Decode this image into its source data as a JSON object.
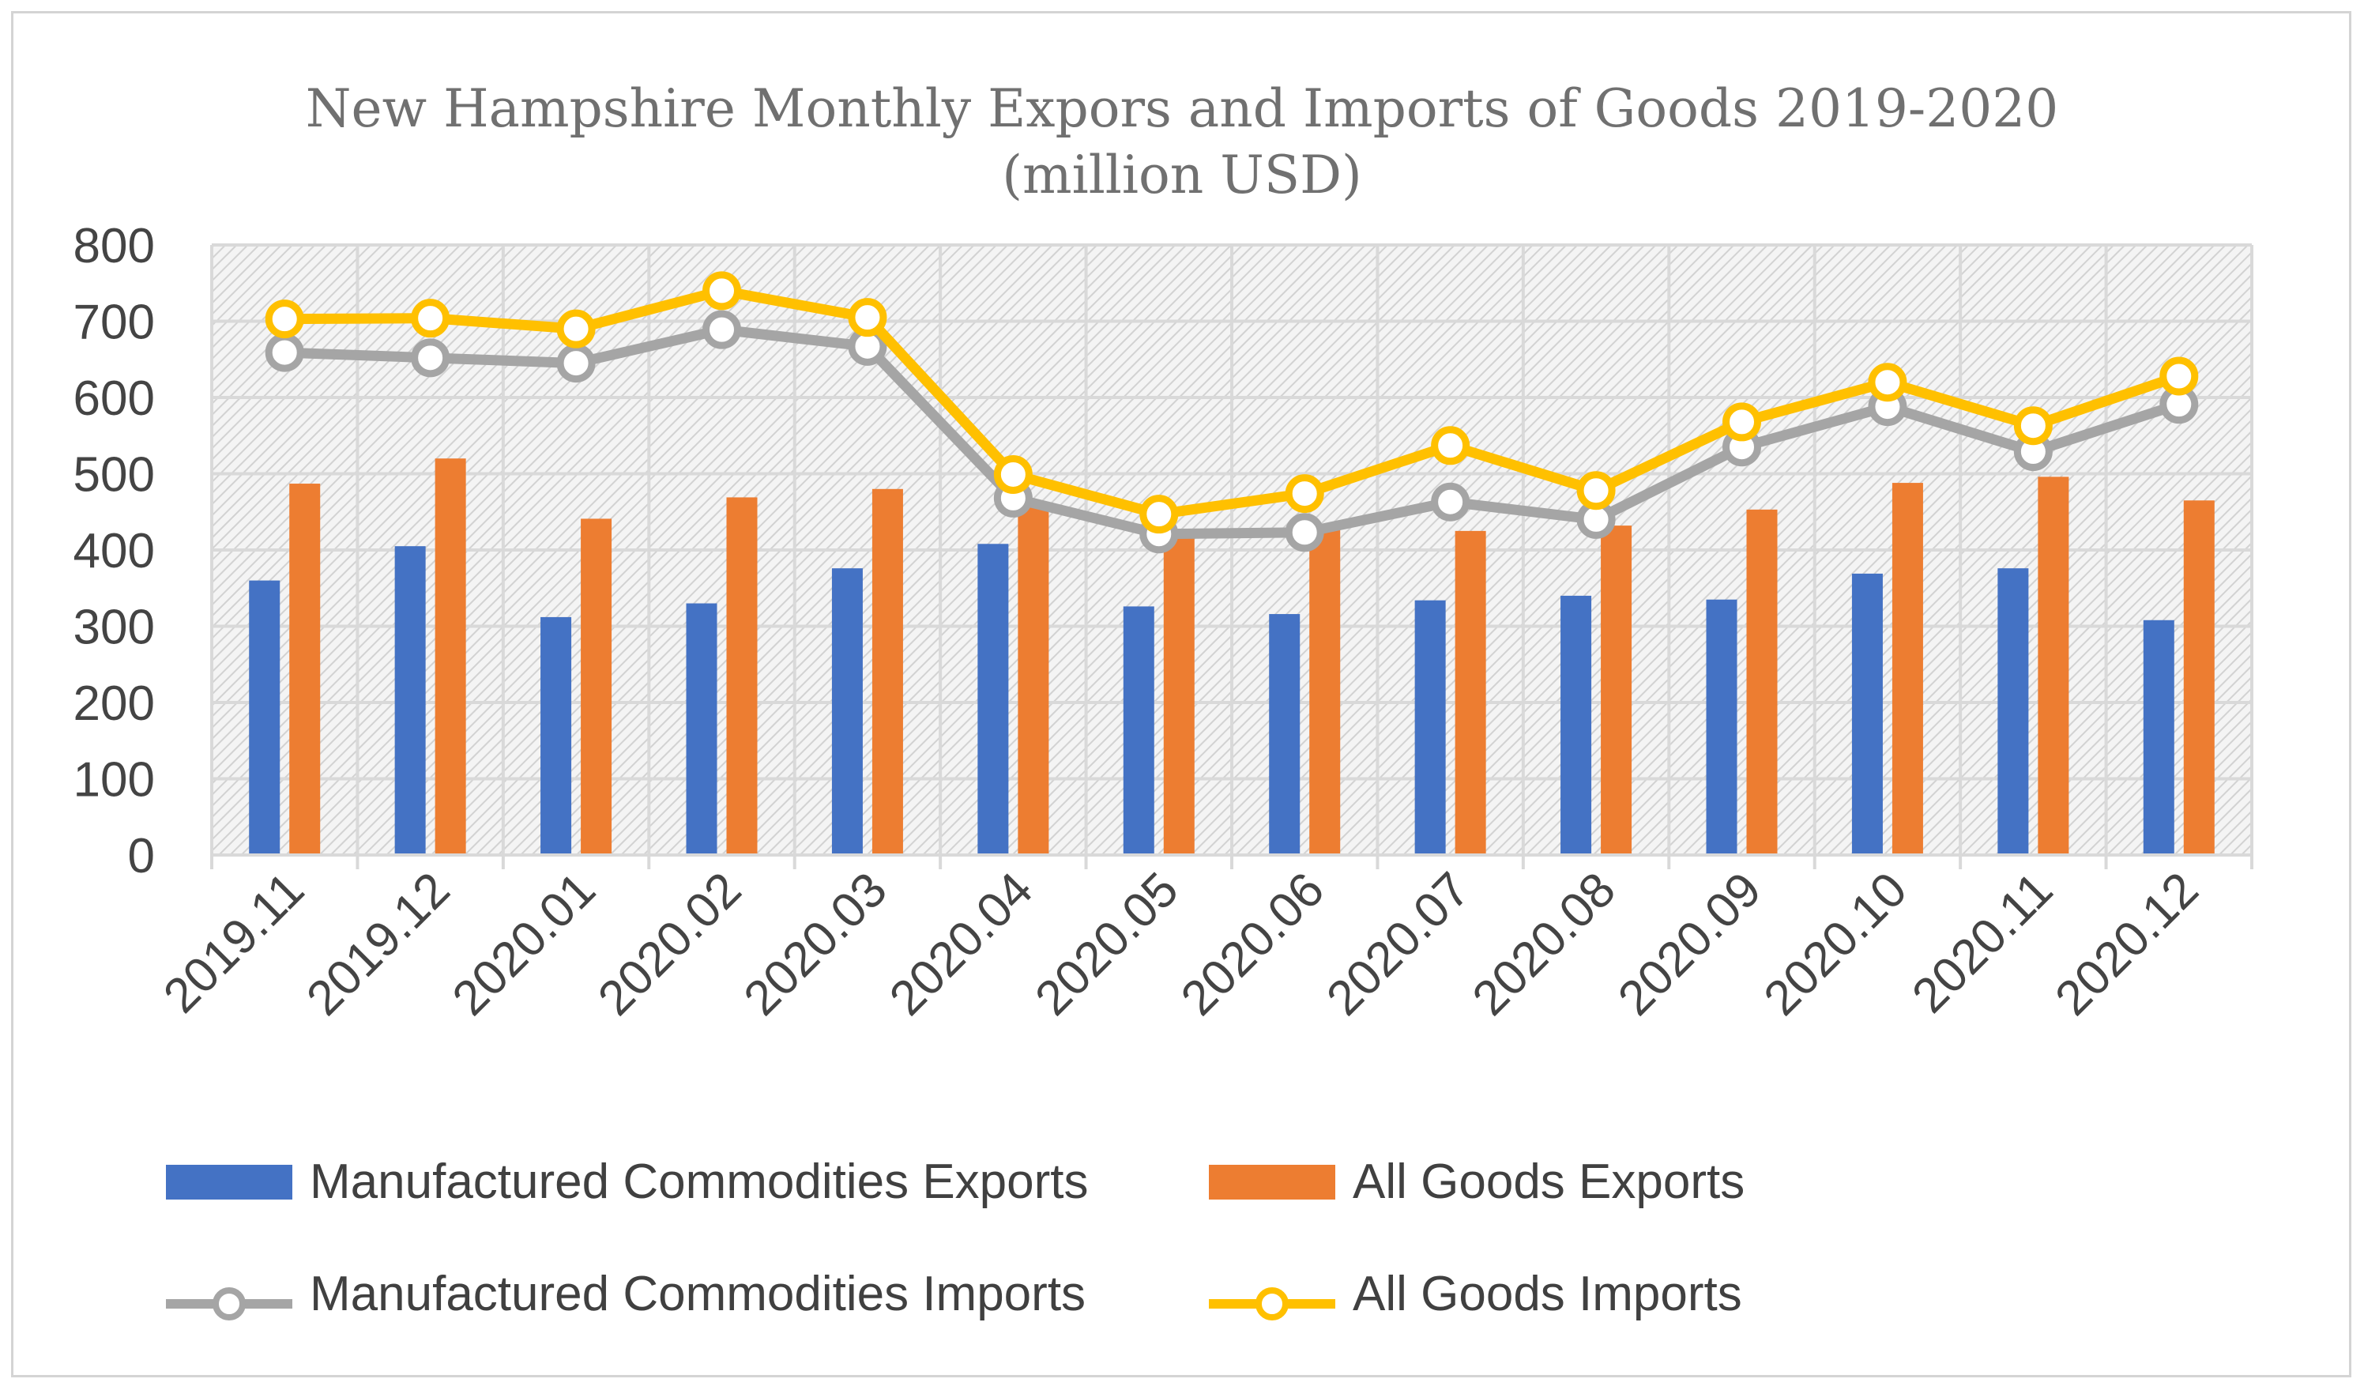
{
  "chart_data": {
    "type": "bar+line",
    "title_line1": "New Hampshire Monthly Expors and Imports of Goods 2019-2020",
    "title_line2": "(million USD)",
    "categories": [
      "2019.11",
      "2019.12",
      "2020.01",
      "2020.02",
      "2020.03",
      "2020.04",
      "2020.05",
      "2020.06",
      "2020.07",
      "2020.08",
      "2020.09",
      "2020.10",
      "2020.11",
      "2020.12"
    ],
    "ylim": [
      0,
      800
    ],
    "yticks": [
      0,
      100,
      200,
      300,
      400,
      500,
      600,
      700,
      800
    ],
    "grid": true,
    "legend_position": "bottom",
    "bar_series": [
      {
        "name": "Manufactured Commodities Exports",
        "color": "#4472c4",
        "values": [
          360,
          405,
          312,
          330,
          376,
          408,
          326,
          316,
          334,
          340,
          335,
          369,
          376,
          308
        ]
      },
      {
        "name": "All Goods Exports",
        "color": "#ed7d31",
        "values": [
          487,
          520,
          441,
          469,
          480,
          457,
          418,
          429,
          425,
          432,
          453,
          488,
          496,
          465
        ]
      }
    ],
    "line_series": [
      {
        "name": "Manufactured Commodities Imports",
        "color": "#a5a5a5",
        "values": [
          659,
          652,
          645,
          689,
          667,
          468,
          421,
          423,
          463,
          440,
          535,
          588,
          529,
          591
        ]
      },
      {
        "name": "All Goods Imports",
        "color": "#ffc000",
        "values": [
          703,
          704,
          690,
          740,
          705,
          499,
          447,
          474,
          537,
          478,
          568,
          620,
          563,
          628
        ]
      }
    ]
  }
}
